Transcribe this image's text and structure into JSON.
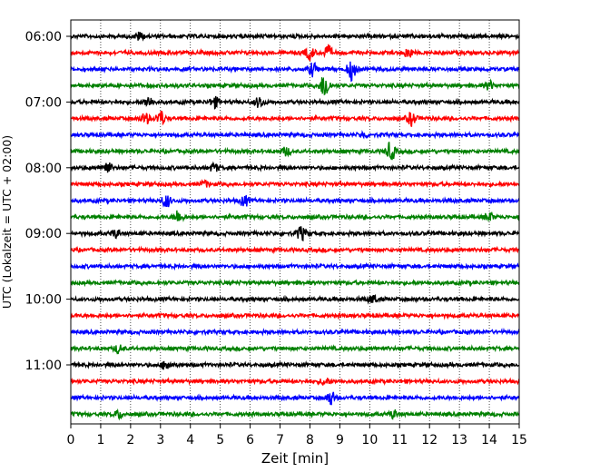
{
  "chart_data": {
    "type": "line",
    "xlabel": "Zeit  [min]",
    "ylabel": "UTC (Lokalzeit = UTC + 02:00)",
    "xlim": [
      0,
      15
    ],
    "x_ticks": [
      0,
      1,
      2,
      3,
      4,
      5,
      6,
      7,
      8,
      9,
      10,
      11,
      12,
      13,
      14,
      15
    ],
    "y_ticks": [
      "06:00",
      "07:00",
      "08:00",
      "09:00",
      "10:00",
      "11:00"
    ],
    "grid": "vertical dotted lines at each minute",
    "trace_interval_min": 15,
    "colors": [
      "#000000",
      "#ff0000",
      "#0000ff",
      "#008000"
    ],
    "traces": [
      {
        "start": "06:00",
        "color": "#000000",
        "events": [
          {
            "t": 2.3,
            "amp": 0.3
          }
        ]
      },
      {
        "start": "06:15",
        "color": "#ff0000",
        "events": [
          {
            "t": 8.0,
            "amp": 0.5
          },
          {
            "t": 8.6,
            "amp": 0.5
          },
          {
            "t": 11.3,
            "amp": 0.4
          }
        ]
      },
      {
        "start": "06:30",
        "color": "#0000ff",
        "events": [
          {
            "t": 8.1,
            "amp": 0.5
          },
          {
            "t": 9.4,
            "amp": 0.8
          }
        ]
      },
      {
        "start": "06:45",
        "color": "#008000",
        "events": [
          {
            "t": 8.5,
            "amp": 1.0
          },
          {
            "t": 14.0,
            "amp": 0.3
          }
        ]
      },
      {
        "start": "07:00",
        "color": "#000000",
        "events": [
          {
            "t": 2.6,
            "amp": 0.4
          },
          {
            "t": 4.8,
            "amp": 0.4
          },
          {
            "t": 6.3,
            "amp": 0.4
          }
        ]
      },
      {
        "start": "07:15",
        "color": "#ff0000",
        "events": [
          {
            "t": 2.5,
            "amp": 0.4
          },
          {
            "t": 3.0,
            "amp": 0.6
          },
          {
            "t": 11.4,
            "amp": 0.5
          }
        ]
      },
      {
        "start": "07:30",
        "color": "#0000ff",
        "events": [
          {
            "t": 9.8,
            "amp": 0.2
          }
        ]
      },
      {
        "start": "07:45",
        "color": "#008000",
        "events": [
          {
            "t": 7.2,
            "amp": 0.3
          },
          {
            "t": 10.7,
            "amp": 0.7
          }
        ]
      },
      {
        "start": "08:00",
        "color": "#000000",
        "events": [
          {
            "t": 1.2,
            "amp": 0.5
          },
          {
            "t": 4.8,
            "amp": 0.3
          }
        ]
      },
      {
        "start": "08:15",
        "color": "#ff0000",
        "events": [
          {
            "t": 4.5,
            "amp": 0.2
          }
        ]
      },
      {
        "start": "08:30",
        "color": "#0000ff",
        "events": [
          {
            "t": 3.2,
            "amp": 0.5
          },
          {
            "t": 5.8,
            "amp": 0.4
          }
        ]
      },
      {
        "start": "08:45",
        "color": "#008000",
        "events": [
          {
            "t": 3.6,
            "amp": 0.5
          },
          {
            "t": 14.0,
            "amp": 0.3
          }
        ]
      },
      {
        "start": "09:00",
        "color": "#000000",
        "events": [
          {
            "t": 1.5,
            "amp": 0.3
          },
          {
            "t": 7.7,
            "amp": 0.5
          }
        ]
      },
      {
        "start": "09:15",
        "color": "#ff0000",
        "events": []
      },
      {
        "start": "09:30",
        "color": "#0000ff",
        "events": []
      },
      {
        "start": "09:45",
        "color": "#008000",
        "events": []
      },
      {
        "start": "10:00",
        "color": "#000000",
        "events": [
          {
            "t": 10.1,
            "amp": 0.3
          }
        ]
      },
      {
        "start": "10:15",
        "color": "#ff0000",
        "events": []
      },
      {
        "start": "10:30",
        "color": "#0000ff",
        "events": []
      },
      {
        "start": "10:45",
        "color": "#008000",
        "events": [
          {
            "t": 1.6,
            "amp": 0.3
          }
        ]
      },
      {
        "start": "11:00",
        "color": "#000000",
        "events": [
          {
            "t": 3.2,
            "amp": 0.4
          }
        ]
      },
      {
        "start": "11:15",
        "color": "#ff0000",
        "events": [
          {
            "t": 8.5,
            "amp": 0.3
          }
        ]
      },
      {
        "start": "11:30",
        "color": "#0000ff",
        "events": [
          {
            "t": 8.7,
            "amp": 0.5
          }
        ]
      },
      {
        "start": "11:45",
        "color": "#008000",
        "events": [
          {
            "t": 1.6,
            "amp": 0.3
          },
          {
            "t": 10.8,
            "amp": 0.3
          }
        ]
      }
    ]
  }
}
